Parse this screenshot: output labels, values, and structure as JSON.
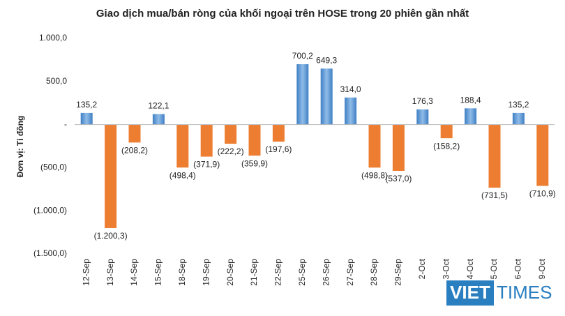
{
  "chart_data": {
    "type": "bar",
    "title": "Giao dịch mua/bán ròng của khối ngoại trên HOSE trong 20 phiên gần nhất",
    "y_axis_label": "Đơn vị: Tỉ đồng",
    "categories": [
      "12-Sep",
      "13-Sep",
      "14-Sep",
      "15-Sep",
      "18-Sep",
      "19-Sep",
      "20-Sep",
      "21-Sep",
      "22-Sep",
      "25-Sep",
      "26-Sep",
      "27-Sep",
      "28-Sep",
      "29-Sep",
      "2-Oct",
      "3-Oct",
      "4-Oct",
      "5-Oct",
      "6-Oct",
      "9-Oct"
    ],
    "values": [
      135.2,
      -1200.3,
      -208.2,
      122.1,
      -498.4,
      -371.9,
      -222.2,
      -359.9,
      -197.6,
      700.2,
      649.3,
      314.0,
      -498.8,
      -537.0,
      176.3,
      -158.2,
      188.4,
      -731.5,
      135.2,
      -710.9
    ],
    "value_labels": [
      "135,2",
      "(1.200,3)",
      "(208,2)",
      "122,1",
      "(498,4)",
      "(371,9)",
      "(222,2)",
      "(359,9)",
      "(197,6)",
      "700,2",
      "649,3",
      "314,0",
      "(498,8)",
      "(537,0)",
      "176,3",
      "(158,2)",
      "188,4",
      "(731,5)",
      "135,2",
      "(710,9)"
    ],
    "positive_color": "#5b9bd5",
    "negative_color": "#ed7d31",
    "ylim": [
      -1500,
      1000
    ],
    "yticks": [
      {
        "value": -1500,
        "label": "(1.500,0)"
      },
      {
        "value": -1000,
        "label": "(1.000,0)"
      },
      {
        "value": -500,
        "label": "(500,0)"
      },
      {
        "value": 0,
        "label": "-"
      },
      {
        "value": 500,
        "label": "500,0"
      },
      {
        "value": 1000,
        "label": "1.000,0"
      }
    ],
    "grid": false
  },
  "watermark": {
    "part1": "VIET",
    "part2": "TIMES"
  }
}
